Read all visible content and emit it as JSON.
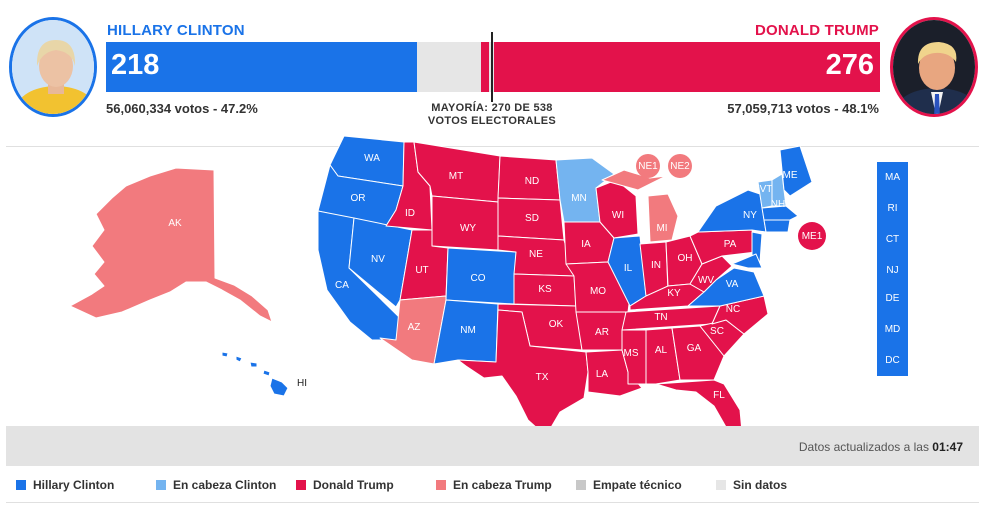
{
  "colors": {
    "clinton": "#1a73e8",
    "lean_clinton": "#74b4f0",
    "trump": "#e3124b",
    "lean_trump": "#f27a7e",
    "tie": "#c8c8c8",
    "no_data": "#e6e6e6"
  },
  "clinton": {
    "name": "HILLARY CLINTON",
    "electoral_votes": "218",
    "popular": "56,060,334 votos - 47.2%",
    "avatar_icon": "clinton-portrait"
  },
  "trump": {
    "name": "DONALD TRUMP",
    "electoral_votes": "276",
    "popular": "57,059,713 votos - 48.1%",
    "avatar_icon": "trump-portrait"
  },
  "majority": {
    "line1": "MAYORÍA: 270 DE 538",
    "line2": "VOTOS ELECTORALES"
  },
  "map_labels": {
    "WA": "WA",
    "OR": "OR",
    "CA": "CA",
    "NV": "NV",
    "ID": "ID",
    "MT": "MT",
    "WY": "WY",
    "UT": "UT",
    "AZ": "AZ",
    "CO": "CO",
    "NM": "NM",
    "ND": "ND",
    "SD": "SD",
    "NE": "NE",
    "KS": "KS",
    "OK": "OK",
    "TX": "TX",
    "MN": "MN",
    "IA": "IA",
    "MO": "MO",
    "AR": "AR",
    "LA": "LA",
    "WI": "WI",
    "IL": "IL",
    "MI": "MI",
    "IN": "IN",
    "OH": "OH",
    "KY": "KY",
    "TN": "TN",
    "MS": "MS",
    "AL": "AL",
    "GA": "GA",
    "FL": "FL",
    "SC": "SC",
    "NC": "NC",
    "VA": "VA",
    "WV": "WV",
    "PA": "PA",
    "NY": "NY",
    "VT": "VT",
    "NH": "NH",
    "ME": "ME",
    "AK": "AK",
    "HI": "HI",
    "NE1": "NE1",
    "NE2": "NE2",
    "ME1": "ME1"
  },
  "small_states": [
    "MA",
    "RI",
    "CT",
    "NJ",
    "DE",
    "MD",
    "DC"
  ],
  "update": {
    "text": "Datos actualizados a las ",
    "time": "01:47"
  },
  "legend": [
    {
      "label": "Hillary Clinton",
      "color": "#1a73e8"
    },
    {
      "label": "En cabeza Clinton",
      "color": "#74b4f0"
    },
    {
      "label": "Donald Trump",
      "color": "#e3124b"
    },
    {
      "label": "En cabeza Trump",
      "color": "#f27a7e"
    },
    {
      "label": "Empate técnico",
      "color": "#c8c8c8"
    },
    {
      "label": "Sin datos",
      "color": "#e6e6e6"
    }
  ]
}
